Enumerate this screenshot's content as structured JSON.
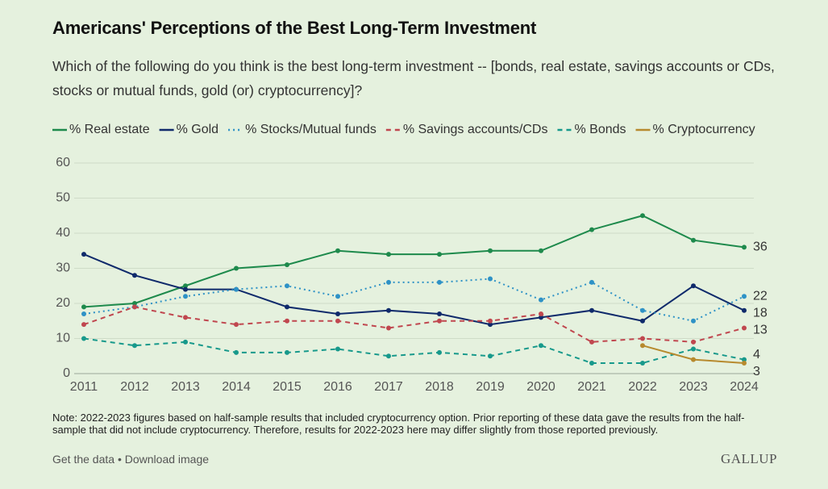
{
  "chart_data": {
    "type": "line",
    "title": "Americans' Perceptions of the Best Long-Term Investment",
    "subtitle": "Which of the following do you think is the best long-term investment -- [bonds, real estate, savings accounts or CDs, stocks or mutual funds, gold (or) cryptocurrency]?",
    "x": [
      2011,
      2012,
      2013,
      2014,
      2015,
      2016,
      2017,
      2018,
      2019,
      2020,
      2021,
      2022,
      2023,
      2024
    ],
    "xlim": [
      2011,
      2024
    ],
    "xticks": [
      2011,
      2012,
      2013,
      2014,
      2015,
      2016,
      2017,
      2018,
      2019,
      2020,
      2021,
      2022,
      2023,
      2024
    ],
    "ylim": [
      0,
      60
    ],
    "yticks": [
      0,
      10,
      20,
      30,
      40,
      50,
      60
    ],
    "grid": true,
    "legend": "top",
    "series": [
      {
        "name": "% Real estate",
        "color": "#1e8a4c",
        "dash": "solid",
        "values": [
          19,
          20,
          25,
          30,
          31,
          35,
          34,
          34,
          35,
          35,
          41,
          45,
          38,
          36
        ]
      },
      {
        "name": "% Gold",
        "color": "#0f2a6b",
        "dash": "solid",
        "values": [
          34,
          28,
          24,
          24,
          19,
          17,
          18,
          17,
          14,
          16,
          18,
          15,
          25,
          18
        ]
      },
      {
        "name": "% Stocks/Mutual funds",
        "color": "#2e92c6",
        "dash": "dotted",
        "values": [
          17,
          19,
          22,
          24,
          25,
          22,
          26,
          26,
          27,
          21,
          26,
          18,
          15,
          22
        ]
      },
      {
        "name": "% Savings accounts/CDs",
        "color": "#c0474f",
        "dash": "dashed",
        "values": [
          14,
          19,
          16,
          14,
          15,
          15,
          13,
          15,
          15,
          17,
          9,
          10,
          9,
          13
        ]
      },
      {
        "name": "% Bonds",
        "color": "#17998b",
        "dash": "dashed",
        "values": [
          10,
          8,
          9,
          6,
          6,
          7,
          5,
          6,
          5,
          8,
          3,
          3,
          7,
          4
        ]
      },
      {
        "name": "% Cryptocurrency",
        "color": "#b78a2e",
        "dash": "solid",
        "values": [
          null,
          null,
          null,
          null,
          null,
          null,
          null,
          null,
          null,
          null,
          null,
          8,
          4,
          3
        ]
      }
    ],
    "note": "Note: 2022-2023 figures based on half-sample results that included cryptocurrency option. Prior reporting of these data gave the results from the half-sample that did not include cryptocurrency. Therefore, results for 2022-2023 here may differ slightly from those reported previously."
  },
  "footer": {
    "links": [
      "Get the data",
      "Download image"
    ],
    "separator": "•",
    "logo": "GALLUP"
  }
}
